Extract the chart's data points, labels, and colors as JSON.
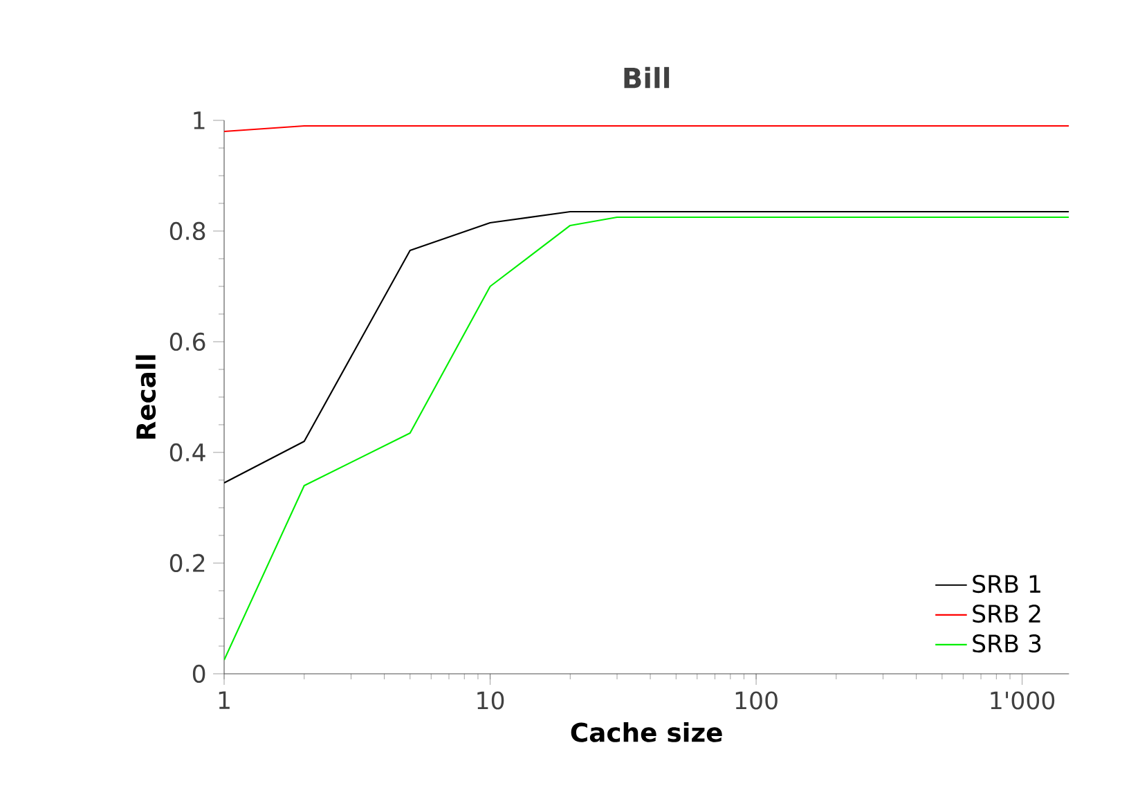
{
  "chart_data": {
    "type": "line",
    "title": "Bill",
    "xlabel": "Cache size",
    "ylabel": "Recall",
    "log": "x",
    "legend": "bottom right",
    "grid": false,
    "marker": "none",
    "line_style": "solid",
    "xlim": [
      1,
      1500
    ],
    "ylim": [
      0,
      1
    ],
    "xticks": [
      1,
      10,
      100,
      {
        "value": 1000,
        "label": "1'000"
      }
    ],
    "yticks": [
      0,
      0.2,
      0.4,
      0.6,
      0.8,
      1
    ],
    "series": [
      {
        "name": "SRB 1",
        "color": "#000000",
        "x": [
          1,
          2,
          5,
          10,
          20,
          30,
          1500
        ],
        "values": [
          0.345,
          0.42,
          0.765,
          0.815,
          0.835,
          0.835,
          0.835
        ]
      },
      {
        "name": "SRB 2",
        "color": "#ff0000",
        "x": [
          1,
          2,
          5,
          10,
          20,
          30,
          1500
        ],
        "values": [
          0.98,
          0.99,
          0.99,
          0.99,
          0.99,
          0.99,
          0.99
        ]
      },
      {
        "name": "SRB 3",
        "color": "#00ee00",
        "x": [
          1,
          2,
          5,
          10,
          20,
          30,
          1500
        ],
        "values": [
          0.025,
          0.34,
          0.435,
          0.7,
          0.81,
          0.825,
          0.825
        ]
      }
    ]
  }
}
